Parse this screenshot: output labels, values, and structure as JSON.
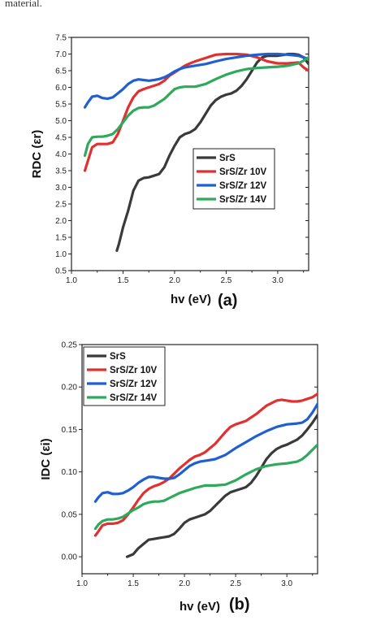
{
  "top_text": "material.",
  "chart_data": [
    {
      "type": "line",
      "panel_label": "(a)",
      "xlabel": "hv (eV)",
      "ylabel": "RDC (εr)",
      "xlim": [
        1.0,
        3.3
      ],
      "ylim": [
        0.5,
        7.5
      ],
      "x_ticks": [
        "1.0",
        "1.5",
        "2.0",
        "2.5",
        "3.0"
      ],
      "y_ticks": [
        "0.5",
        "1.0",
        "1.5",
        "2.0",
        "2.5",
        "3.0",
        "3.5",
        "4.0",
        "4.5",
        "5.0",
        "5.5",
        "6.0",
        "6.5",
        "7.0",
        "7.5"
      ],
      "grid": false,
      "legend_position": "center-right",
      "series": [
        {
          "name": "SrS",
          "color": "#3a3a3a",
          "x": [
            1.44,
            1.46,
            1.5,
            1.55,
            1.6,
            1.65,
            1.7,
            1.75,
            1.8,
            1.85,
            1.9,
            1.95,
            2.0,
            2.05,
            2.1,
            2.15,
            2.2,
            2.25,
            2.3,
            2.35,
            2.4,
            2.45,
            2.5,
            2.55,
            2.6,
            2.65,
            2.7,
            2.75,
            2.8,
            2.85,
            2.9,
            2.95,
            3.0,
            3.05,
            3.1,
            3.15,
            3.2,
            3.25,
            3.3
          ],
          "y": [
            1.1,
            1.3,
            1.8,
            2.3,
            2.9,
            3.2,
            3.28,
            3.3,
            3.35,
            3.4,
            3.6,
            3.95,
            4.25,
            4.5,
            4.6,
            4.65,
            4.75,
            4.95,
            5.2,
            5.45,
            5.62,
            5.72,
            5.78,
            5.82,
            5.9,
            6.05,
            6.25,
            6.5,
            6.75,
            6.9,
            6.95,
            6.95,
            6.95,
            6.97,
            7.0,
            7.0,
            6.98,
            6.9,
            6.7
          ]
        },
        {
          "name": "SrS/Zr 10V",
          "color": "#e03030",
          "x": [
            1.13,
            1.16,
            1.2,
            1.25,
            1.3,
            1.35,
            1.4,
            1.45,
            1.5,
            1.55,
            1.6,
            1.65,
            1.7,
            1.75,
            1.8,
            1.85,
            1.9,
            1.95,
            2.0,
            2.05,
            2.1,
            2.15,
            2.2,
            2.3,
            2.4,
            2.5,
            2.6,
            2.7,
            2.8,
            2.9,
            3.0,
            3.1,
            3.2,
            3.25,
            3.3
          ],
          "y": [
            3.5,
            3.8,
            4.2,
            4.3,
            4.3,
            4.3,
            4.35,
            4.6,
            5.0,
            5.4,
            5.7,
            5.88,
            5.95,
            6.0,
            6.05,
            6.1,
            6.2,
            6.35,
            6.45,
            6.55,
            6.65,
            6.72,
            6.78,
            6.88,
            6.98,
            7.0,
            7.0,
            6.98,
            6.9,
            6.78,
            6.72,
            6.72,
            6.75,
            6.6,
            6.5
          ]
        },
        {
          "name": "SrS/Zr 12V",
          "color": "#1f5fd0",
          "x": [
            1.13,
            1.16,
            1.2,
            1.25,
            1.3,
            1.35,
            1.4,
            1.45,
            1.5,
            1.55,
            1.6,
            1.65,
            1.7,
            1.75,
            1.8,
            1.85,
            1.9,
            1.95,
            2.0,
            2.05,
            2.1,
            2.2,
            2.3,
            2.4,
            2.5,
            2.6,
            2.7,
            2.8,
            2.9,
            3.0,
            3.1,
            3.2,
            3.25,
            3.3
          ],
          "y": [
            5.4,
            5.55,
            5.72,
            5.75,
            5.68,
            5.66,
            5.7,
            5.82,
            5.95,
            6.1,
            6.2,
            6.24,
            6.22,
            6.2,
            6.22,
            6.25,
            6.3,
            6.38,
            6.48,
            6.55,
            6.6,
            6.65,
            6.7,
            6.78,
            6.85,
            6.9,
            6.95,
            6.98,
            7.0,
            7.0,
            6.98,
            6.95,
            6.9,
            6.85
          ]
        },
        {
          "name": "SrS/Zr 14V",
          "color": "#2daa5a",
          "x": [
            1.13,
            1.16,
            1.2,
            1.25,
            1.3,
            1.35,
            1.4,
            1.45,
            1.5,
            1.55,
            1.6,
            1.65,
            1.7,
            1.75,
            1.8,
            1.85,
            1.9,
            1.95,
            2.0,
            2.05,
            2.1,
            2.2,
            2.3,
            2.4,
            2.5,
            2.6,
            2.7,
            2.8,
            2.9,
            3.0,
            3.1,
            3.2,
            3.25,
            3.3
          ],
          "y": [
            3.95,
            4.3,
            4.5,
            4.52,
            4.52,
            4.55,
            4.6,
            4.75,
            4.95,
            5.15,
            5.3,
            5.38,
            5.4,
            5.4,
            5.45,
            5.55,
            5.65,
            5.8,
            5.95,
            6.0,
            6.02,
            6.02,
            6.1,
            6.25,
            6.38,
            6.48,
            6.55,
            6.58,
            6.6,
            6.62,
            6.65,
            6.72,
            6.8,
            6.9
          ]
        }
      ]
    },
    {
      "type": "line",
      "panel_label": "(b)",
      "xlabel": "hv (eV)",
      "ylabel": "IDC (εi)",
      "xlim": [
        1.0,
        3.3
      ],
      "ylim": [
        -0.02,
        0.25
      ],
      "x_ticks": [
        "1.0",
        "1.5",
        "2.0",
        "2.5",
        "3.0"
      ],
      "y_ticks": [
        "0.00",
        "0.05",
        "0.10",
        "0.15",
        "0.20",
        "0.25"
      ],
      "grid": false,
      "legend_position": "top-left",
      "series": [
        {
          "name": "SrS",
          "color": "#3a3a3a",
          "x": [
            1.44,
            1.5,
            1.55,
            1.6,
            1.65,
            1.7,
            1.75,
            1.8,
            1.85,
            1.9,
            1.95,
            2.0,
            2.05,
            2.1,
            2.15,
            2.2,
            2.25,
            2.3,
            2.35,
            2.4,
            2.45,
            2.5,
            2.55,
            2.6,
            2.65,
            2.7,
            2.75,
            2.8,
            2.85,
            2.9,
            2.95,
            3.0,
            3.05,
            3.1,
            3.15,
            3.2,
            3.25,
            3.3
          ],
          "y": [
            0.0,
            0.003,
            0.01,
            0.015,
            0.02,
            0.021,
            0.022,
            0.023,
            0.024,
            0.027,
            0.033,
            0.04,
            0.044,
            0.046,
            0.048,
            0.05,
            0.054,
            0.06,
            0.066,
            0.072,
            0.076,
            0.078,
            0.08,
            0.082,
            0.087,
            0.095,
            0.105,
            0.115,
            0.122,
            0.127,
            0.13,
            0.132,
            0.135,
            0.138,
            0.143,
            0.15,
            0.158,
            0.167
          ]
        },
        {
          "name": "SrS/Zr 10V",
          "color": "#e03030",
          "x": [
            1.13,
            1.16,
            1.2,
            1.25,
            1.3,
            1.35,
            1.4,
            1.45,
            1.5,
            1.55,
            1.6,
            1.65,
            1.7,
            1.75,
            1.8,
            1.85,
            1.9,
            1.95,
            2.0,
            2.05,
            2.1,
            2.15,
            2.2,
            2.25,
            2.3,
            2.35,
            2.4,
            2.45,
            2.5,
            2.6,
            2.7,
            2.8,
            2.9,
            2.95,
            3.0,
            3.05,
            3.1,
            3.15,
            3.2,
            3.25,
            3.3
          ],
          "y": [
            0.025,
            0.03,
            0.037,
            0.039,
            0.039,
            0.04,
            0.043,
            0.05,
            0.058,
            0.067,
            0.075,
            0.08,
            0.083,
            0.085,
            0.088,
            0.092,
            0.098,
            0.104,
            0.109,
            0.114,
            0.118,
            0.12,
            0.123,
            0.128,
            0.133,
            0.14,
            0.147,
            0.153,
            0.156,
            0.16,
            0.168,
            0.178,
            0.184,
            0.185,
            0.184,
            0.183,
            0.183,
            0.184,
            0.186,
            0.188,
            0.192
          ]
        },
        {
          "name": "SrS/Zr 12V",
          "color": "#1f5fd0",
          "x": [
            1.13,
            1.16,
            1.2,
            1.25,
            1.3,
            1.35,
            1.4,
            1.45,
            1.5,
            1.55,
            1.6,
            1.65,
            1.7,
            1.75,
            1.8,
            1.85,
            1.9,
            1.95,
            2.0,
            2.05,
            2.1,
            2.15,
            2.2,
            2.3,
            2.4,
            2.5,
            2.6,
            2.7,
            2.8,
            2.9,
            3.0,
            3.1,
            3.15,
            3.2,
            3.25,
            3.3
          ],
          "y": [
            0.065,
            0.07,
            0.075,
            0.076,
            0.074,
            0.074,
            0.075,
            0.078,
            0.082,
            0.087,
            0.091,
            0.094,
            0.094,
            0.093,
            0.092,
            0.092,
            0.093,
            0.097,
            0.102,
            0.107,
            0.11,
            0.112,
            0.113,
            0.115,
            0.12,
            0.128,
            0.135,
            0.142,
            0.148,
            0.153,
            0.156,
            0.157,
            0.158,
            0.162,
            0.17,
            0.18
          ]
        },
        {
          "name": "SrS/Zr 14V",
          "color": "#2daa5a",
          "x": [
            1.13,
            1.16,
            1.2,
            1.25,
            1.3,
            1.35,
            1.4,
            1.45,
            1.5,
            1.55,
            1.6,
            1.65,
            1.7,
            1.75,
            1.8,
            1.85,
            1.9,
            1.95,
            2.0,
            2.05,
            2.1,
            2.2,
            2.3,
            2.4,
            2.5,
            2.6,
            2.7,
            2.8,
            2.9,
            3.0,
            3.1,
            3.15,
            3.2,
            3.25,
            3.3
          ],
          "y": [
            0.033,
            0.038,
            0.042,
            0.044,
            0.044,
            0.045,
            0.047,
            0.051,
            0.055,
            0.058,
            0.062,
            0.064,
            0.065,
            0.065,
            0.066,
            0.069,
            0.072,
            0.075,
            0.077,
            0.079,
            0.081,
            0.084,
            0.084,
            0.085,
            0.09,
            0.097,
            0.103,
            0.107,
            0.109,
            0.11,
            0.112,
            0.115,
            0.12,
            0.126,
            0.132
          ]
        }
      ]
    }
  ]
}
